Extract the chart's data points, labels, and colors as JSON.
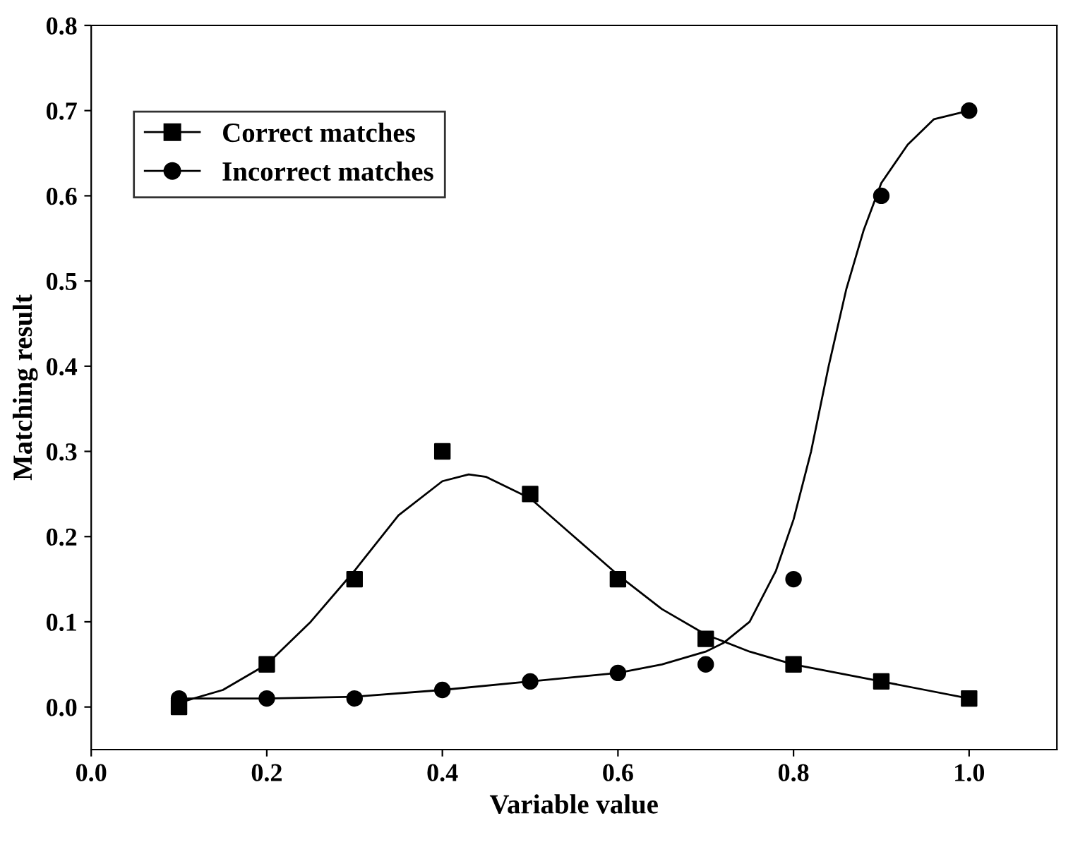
{
  "chart_data": {
    "type": "scatter",
    "xlabel": "Variable value",
    "ylabel": "Matching result",
    "x": [
      0.1,
      0.2,
      0.3,
      0.4,
      0.5,
      0.6,
      0.7,
      0.8,
      0.9,
      1.0
    ],
    "series": [
      {
        "name": "Correct matches",
        "color": "#000000",
        "marker": "square",
        "values": [
          0.0,
          0.05,
          0.15,
          0.3,
          0.25,
          0.15,
          0.08,
          0.05,
          0.03,
          0.01
        ]
      },
      {
        "name": "Incorrect matches",
        "color": "#000000",
        "marker": "circle",
        "values": [
          0.01,
          0.01,
          0.01,
          0.02,
          0.03,
          0.04,
          0.05,
          0.15,
          0.6,
          0.7
        ]
      },
      {
        "type": "line",
        "color": "#000000",
        "x": [
          0.1,
          0.15,
          0.2,
          0.25,
          0.3,
          0.35,
          0.4,
          0.43,
          0.45,
          0.5,
          0.55,
          0.6,
          0.65,
          0.7,
          0.75,
          0.8,
          0.85,
          0.9,
          0.95,
          1.0
        ],
        "values": [
          0.005,
          0.02,
          0.05,
          0.1,
          0.16,
          0.225,
          0.265,
          0.273,
          0.27,
          0.245,
          0.2,
          0.155,
          0.115,
          0.085,
          0.065,
          0.05,
          0.04,
          0.03,
          0.02,
          0.01
        ]
      },
      {
        "type": "line",
        "color": "#000000",
        "x": [
          0.1,
          0.2,
          0.3,
          0.4,
          0.5,
          0.6,
          0.65,
          0.7,
          0.72,
          0.75,
          0.78,
          0.8,
          0.82,
          0.84,
          0.86,
          0.88,
          0.9,
          0.93,
          0.96,
          1.0
        ],
        "values": [
          0.01,
          0.01,
          0.012,
          0.02,
          0.03,
          0.04,
          0.05,
          0.065,
          0.075,
          0.1,
          0.16,
          0.22,
          0.3,
          0.4,
          0.49,
          0.56,
          0.615,
          0.66,
          0.69,
          0.7
        ]
      }
    ],
    "xlim": [
      0.0,
      1.1
    ],
    "ylim": [
      -0.05,
      0.8
    ],
    "xticks": [
      {
        "value": 0.0,
        "label": "0.0"
      },
      0.2,
      0.4,
      0.6,
      0.8,
      {
        "value": 1.0,
        "label": "1.0"
      }
    ],
    "yticks": [
      {
        "value": 0.0,
        "label": "0.0"
      },
      0.1,
      0.2,
      0.3,
      0.4,
      0.5,
      0.6,
      0.7,
      0.8
    ],
    "legend": "top left",
    "grid": false
  }
}
